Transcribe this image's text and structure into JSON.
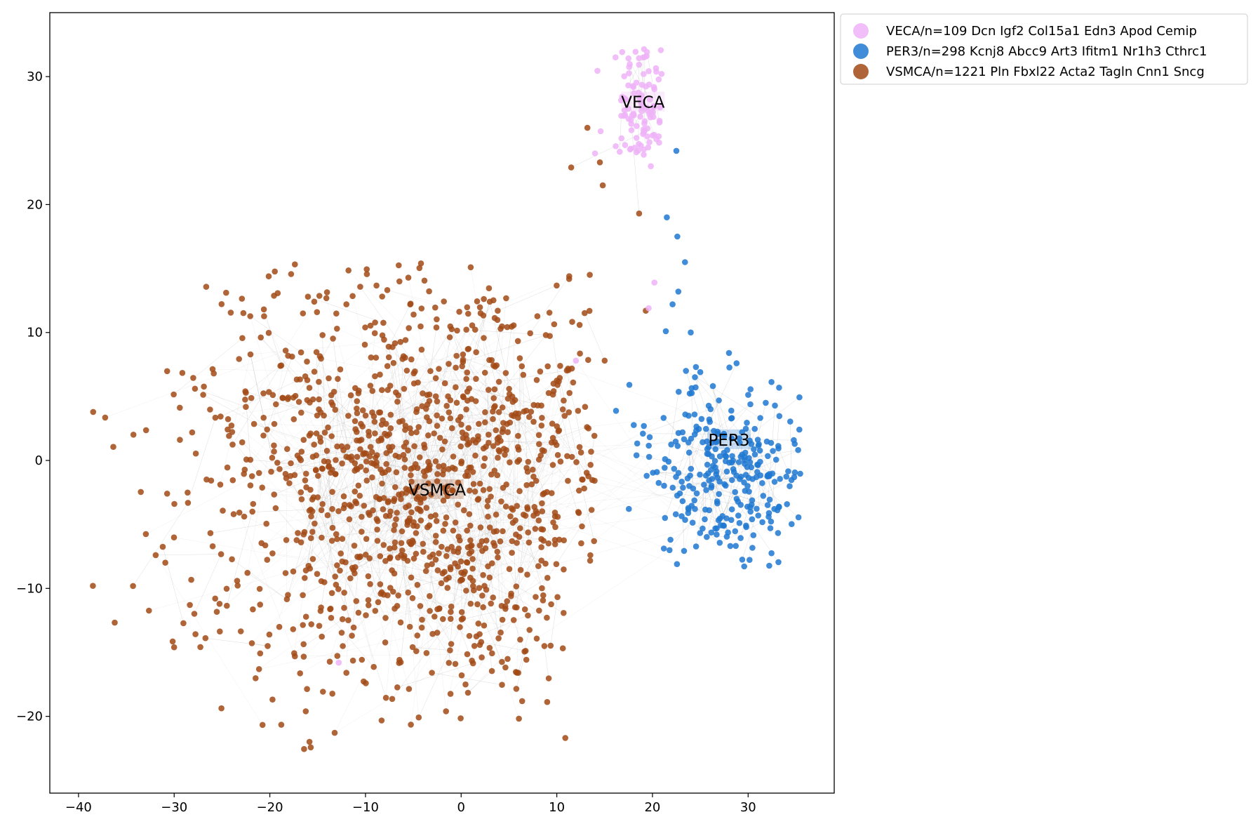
{
  "chart_data": {
    "type": "scatter",
    "title": "",
    "xlabel": "",
    "ylabel": "",
    "xlim": [
      -43,
      39
    ],
    "ylim": [
      -26,
      35
    ],
    "xticks": [
      -40,
      -30,
      -20,
      -10,
      0,
      10,
      20,
      30
    ],
    "yticks": [
      -20,
      -10,
      0,
      10,
      20,
      30
    ],
    "xtick_labels": [
      "−40",
      "−30",
      "−20",
      "−10",
      "0",
      "10",
      "20",
      "30"
    ],
    "ytick_labels": [
      "−20",
      "−10",
      "0",
      "10",
      "20",
      "30"
    ],
    "grid": false,
    "legend_position": "outside-upper-right",
    "edge_color": "#9a9a9a",
    "series": [
      {
        "name": "VECA/n=109 Dcn Igf2 Col15a1 Edn3 Apod Cemip",
        "label": "VECA",
        "color": "#eeb3f8",
        "n": 109,
        "center": [
          19,
          28
        ],
        "label_position": [
          19,
          28
        ],
        "spread": [
          2.6,
          2.6
        ],
        "extra_points": [
          [
            12,
            7.8
          ],
          [
            -12.8,
            -15.8
          ],
          [
            19.6,
            11.9
          ],
          [
            20.2,
            13.9
          ],
          [
            17.5,
            26.7
          ],
          [
            14,
            24
          ]
        ]
      },
      {
        "name": "PER3/n=298 Kcnj8 Abcc9 Art3 Ifitm1 Nr1h3 Cthrc1",
        "label": "PER3",
        "color": "#1f78d1",
        "n": 298,
        "center": [
          27.5,
          -1
        ],
        "label_position": [
          28,
          1.6
        ],
        "spread": [
          4.6,
          3.6
        ],
        "extra_points": [
          [
            22.5,
            24.2
          ],
          [
            21.5,
            19
          ],
          [
            22.6,
            17.5
          ],
          [
            23.4,
            15.5
          ],
          [
            22.7,
            13.2
          ],
          [
            22.1,
            12.2
          ],
          [
            21.4,
            10.1
          ],
          [
            24,
            10
          ],
          [
            28,
            8.4
          ],
          [
            23.5,
            7
          ],
          [
            25,
            6.9
          ],
          [
            19,
            2.1
          ]
        ]
      },
      {
        "name": "VSMCA/n=1221 Pln Fbxl22 Acta2 Tagln Cnn1 Sncg",
        "label": "VSMCA",
        "color": "#a24a16",
        "n": 1221,
        "center": [
          -2,
          -2
        ],
        "label_position": [
          -2.5,
          -2.3
        ],
        "spread": [
          14,
          9
        ],
        "extra_points": [
          [
            13.2,
            26
          ],
          [
            14.5,
            23.3
          ],
          [
            14.8,
            21.5
          ],
          [
            11.5,
            22.9
          ],
          [
            18.6,
            19.3
          ],
          [
            19.3,
            11.7
          ],
          [
            15,
            7.8
          ],
          [
            -12,
            -16.6
          ],
          [
            -38.5,
            -9.8
          ],
          [
            -30,
            -14.6
          ],
          [
            1,
            15.1
          ],
          [
            -4.2,
            15.4
          ],
          [
            -12,
            12.2
          ]
        ]
      }
    ]
  }
}
